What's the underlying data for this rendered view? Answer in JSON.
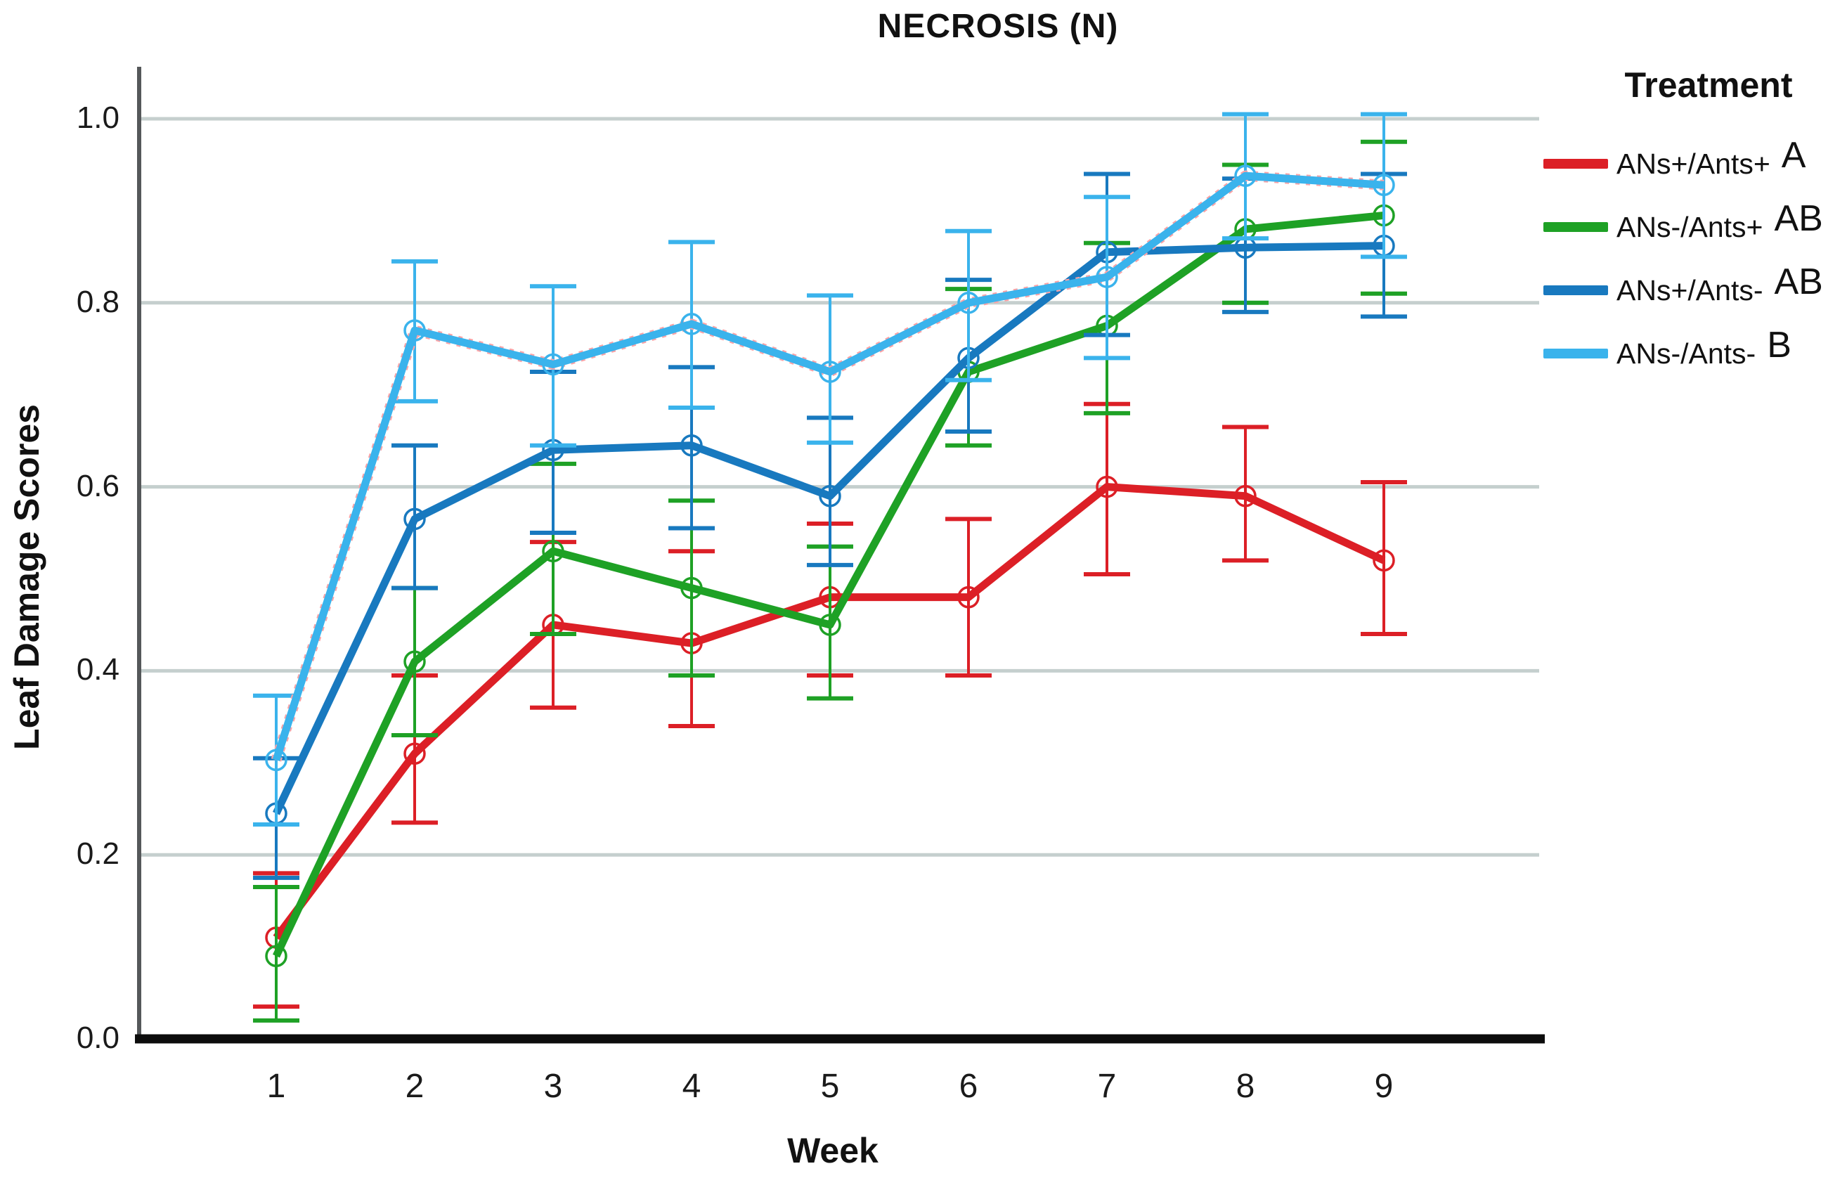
{
  "chart_data": {
    "type": "line",
    "title": "NECROSIS (N)",
    "xlabel": "Week",
    "ylabel": "Leaf Damage Scores",
    "legend_title": "Treatment",
    "legend_position": "right-outside",
    "grid": "horizontal",
    "categories": [
      1,
      2,
      3,
      4,
      5,
      6,
      7,
      8,
      9
    ],
    "ylim": [
      0.0,
      1.05
    ],
    "yticks": [
      "0.0",
      "0.2",
      "0.4",
      "0.6",
      "0.8",
      "1.0"
    ],
    "ytick_values": [
      0.0,
      0.2,
      0.4,
      0.6,
      0.8,
      1.0
    ],
    "axis_colors": {
      "gridline": "#c5cfce",
      "y_axis": "#55585a",
      "x_axis": "#0c0c0c"
    },
    "series": [
      {
        "name": "ANs+/Ants+",
        "significance": "A",
        "color": "#dc1f26",
        "marker": "open-circle",
        "values": [
          0.11,
          0.31,
          0.45,
          0.43,
          0.48,
          0.48,
          0.6,
          0.59,
          0.52
        ],
        "err_top": [
          0.18,
          0.395,
          0.54,
          0.53,
          0.56,
          0.565,
          0.69,
          0.665,
          0.605
        ],
        "err_bottom": [
          0.035,
          0.235,
          0.36,
          0.34,
          0.395,
          0.395,
          0.505,
          0.52,
          0.44
        ]
      },
      {
        "name": "ANs-/Ants+",
        "significance": "AB",
        "color": "#1ea125",
        "marker": "open-circle",
        "values": [
          0.09,
          0.41,
          0.53,
          0.49,
          0.45,
          0.725,
          0.775,
          0.88,
          0.895
        ],
        "err_top": [
          0.165,
          0.49,
          0.625,
          0.585,
          0.535,
          0.815,
          0.865,
          0.95,
          0.975
        ],
        "err_bottom": [
          0.02,
          0.33,
          0.44,
          0.395,
          0.37,
          0.645,
          0.68,
          0.8,
          0.81
        ]
      },
      {
        "name": "ANs+/Ants-",
        "significance": "AB",
        "color": "#1879bf",
        "marker": "open-circle",
        "values": [
          0.245,
          0.565,
          0.64,
          0.645,
          0.59,
          0.74,
          0.855,
          0.86,
          0.862
        ],
        "err_top": [
          0.305,
          0.645,
          0.725,
          0.73,
          0.675,
          0.825,
          0.94,
          0.935,
          0.94
        ],
        "err_bottom": [
          0.175,
          0.49,
          0.55,
          0.555,
          0.515,
          0.66,
          0.765,
          0.79,
          0.785
        ]
      },
      {
        "name": "ANs-/Ants-",
        "significance": "B",
        "color": "#3ab3ec",
        "halo": "#ffa3a6",
        "marker": "open-circle",
        "values": [
          0.303,
          0.77,
          0.733,
          0.777,
          0.725,
          0.8,
          0.828,
          0.938,
          0.928
        ],
        "err_top": [
          0.373,
          0.845,
          0.818,
          0.866,
          0.808,
          0.878,
          0.915,
          1.005,
          1.005
        ],
        "err_bottom": [
          0.233,
          0.693,
          0.645,
          0.686,
          0.648,
          0.716,
          0.74,
          0.87,
          0.85
        ]
      }
    ]
  }
}
